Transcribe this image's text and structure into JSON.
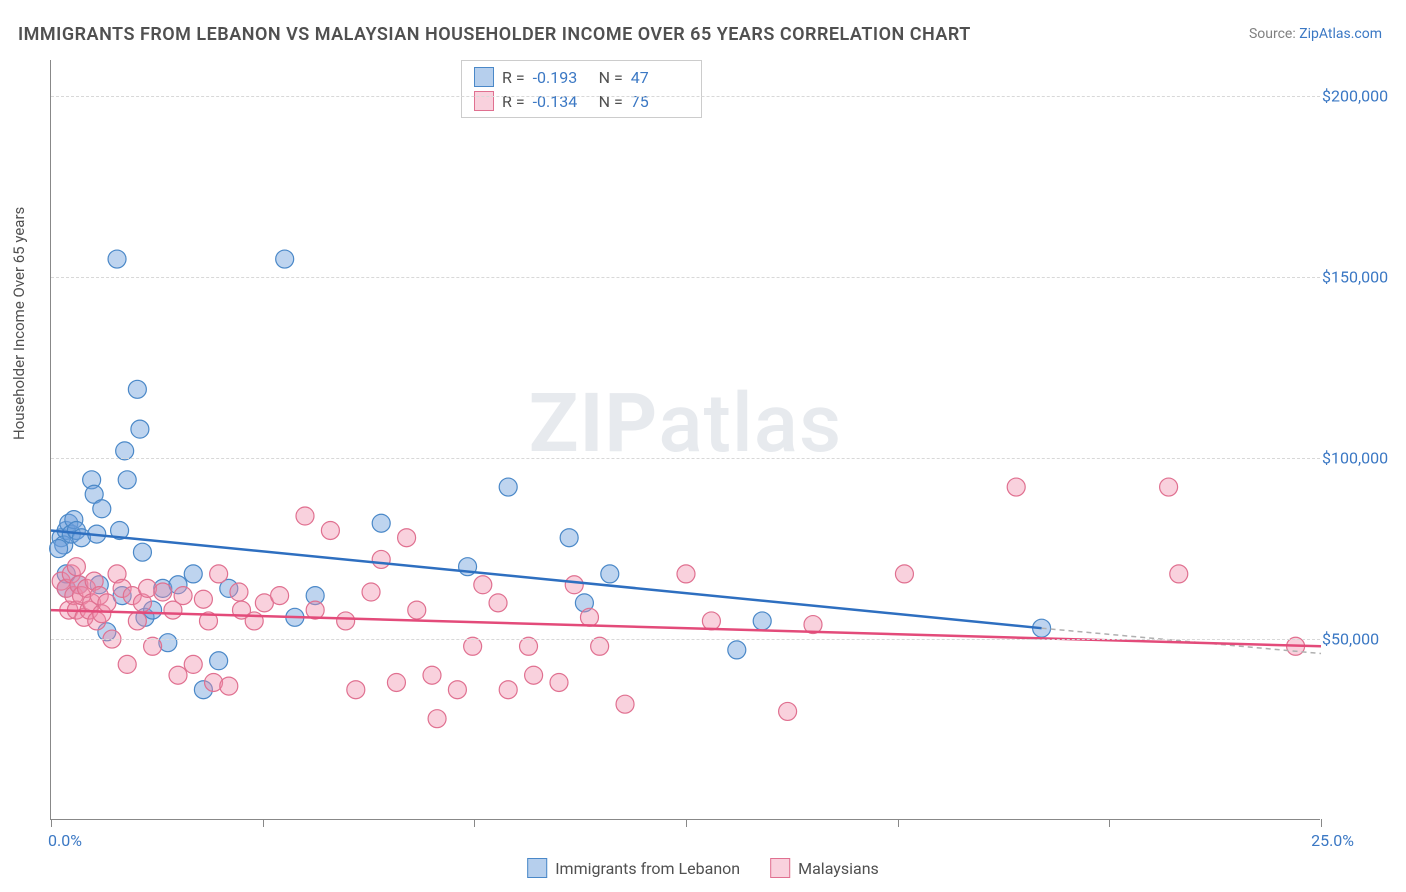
{
  "title": "IMMIGRANTS FROM LEBANON VS MALAYSIAN HOUSEHOLDER INCOME OVER 65 YEARS CORRELATION CHART",
  "source_label": "Source:",
  "source_name": "ZipAtlas.com",
  "ylabel": "Householder Income Over 65 years",
  "watermark_a": "ZIP",
  "watermark_b": "atlas",
  "chart": {
    "type": "scatter",
    "xlim": [
      0,
      25
    ],
    "ylim": [
      0,
      210000
    ],
    "x_tick_label_min": "0.0%",
    "x_tick_label_max": "25.0%",
    "x_ticks": [
      0,
      4.17,
      8.33,
      12.5,
      16.67,
      20.83,
      25
    ],
    "y_gridlines": [
      50000,
      100000,
      150000,
      200000
    ],
    "y_tick_labels": [
      "$50,000",
      "$100,000",
      "$150,000",
      "$200,000"
    ],
    "grid_color": "#d8d8d8",
    "axis_color": "#888888",
    "background_color": "#ffffff",
    "marker_radius": 9,
    "marker_stroke_width": 1.2,
    "series": [
      {
        "name": "Immigrants from Lebanon",
        "color_fill": "rgba(110,160,220,0.45)",
        "color_stroke": "#4a88c8",
        "r_value": "-0.193",
        "n_value": "47",
        "trend": {
          "x1": 0,
          "y1": 80000,
          "x2": 19.5,
          "y2": 53000,
          "color": "#2e6fc0",
          "width": 2.5
        },
        "trend_ext": {
          "x1": 19.5,
          "y1": 53000,
          "x2": 25,
          "y2": 46000,
          "color": "#b0b0b0",
          "dash": "5,4",
          "width": 1.5
        },
        "points": [
          [
            0.2,
            78000
          ],
          [
            0.3,
            80000
          ],
          [
            0.25,
            76000
          ],
          [
            0.35,
            82000
          ],
          [
            0.15,
            75000
          ],
          [
            0.3,
            64000
          ],
          [
            0.4,
            79000
          ],
          [
            0.45,
            83000
          ],
          [
            0.5,
            80000
          ],
          [
            0.55,
            65000
          ],
          [
            0.6,
            78000
          ],
          [
            0.3,
            68000
          ],
          [
            0.8,
            94000
          ],
          [
            0.85,
            90000
          ],
          [
            0.9,
            79000
          ],
          [
            0.95,
            65000
          ],
          [
            1.0,
            86000
          ],
          [
            1.1,
            52000
          ],
          [
            1.3,
            155000
          ],
          [
            1.35,
            80000
          ],
          [
            1.4,
            62000
          ],
          [
            1.45,
            102000
          ],
          [
            1.5,
            94000
          ],
          [
            1.7,
            119000
          ],
          [
            1.75,
            108000
          ],
          [
            1.8,
            74000
          ],
          [
            1.85,
            56000
          ],
          [
            2.0,
            58000
          ],
          [
            2.2,
            64000
          ],
          [
            2.3,
            49000
          ],
          [
            2.5,
            65000
          ],
          [
            2.8,
            68000
          ],
          [
            3.0,
            36000
          ],
          [
            3.3,
            44000
          ],
          [
            3.5,
            64000
          ],
          [
            4.6,
            155000
          ],
          [
            4.8,
            56000
          ],
          [
            5.2,
            62000
          ],
          [
            6.5,
            82000
          ],
          [
            8.2,
            70000
          ],
          [
            9.0,
            92000
          ],
          [
            10.2,
            78000
          ],
          [
            10.5,
            60000
          ],
          [
            11.0,
            68000
          ],
          [
            13.5,
            47000
          ],
          [
            14.0,
            55000
          ],
          [
            19.5,
            53000
          ]
        ]
      },
      {
        "name": "Malaysians",
        "color_fill": "rgba(240,140,170,0.40)",
        "color_stroke": "#e07090",
        "r_value": "-0.134",
        "n_value": "75",
        "trend": {
          "x1": 0,
          "y1": 58000,
          "x2": 25,
          "y2": 48000,
          "color": "#e34b7a",
          "width": 2.5
        },
        "points": [
          [
            0.2,
            66000
          ],
          [
            0.3,
            64000
          ],
          [
            0.35,
            58000
          ],
          [
            0.4,
            68000
          ],
          [
            0.45,
            62000
          ],
          [
            0.5,
            70000
          ],
          [
            0.5,
            58000
          ],
          [
            0.55,
            65000
          ],
          [
            0.6,
            62000
          ],
          [
            0.65,
            56000
          ],
          [
            0.7,
            64000
          ],
          [
            0.75,
            58000
          ],
          [
            0.8,
            60000
          ],
          [
            0.85,
            66000
          ],
          [
            0.9,
            55000
          ],
          [
            0.95,
            62000
          ],
          [
            1.0,
            57000
          ],
          [
            1.1,
            60000
          ],
          [
            1.2,
            50000
          ],
          [
            1.3,
            68000
          ],
          [
            1.4,
            64000
          ],
          [
            1.5,
            43000
          ],
          [
            1.6,
            62000
          ],
          [
            1.7,
            55000
          ],
          [
            1.8,
            60000
          ],
          [
            1.9,
            64000
          ],
          [
            2.0,
            48000
          ],
          [
            2.2,
            63000
          ],
          [
            2.4,
            58000
          ],
          [
            2.5,
            40000
          ],
          [
            2.6,
            62000
          ],
          [
            2.8,
            43000
          ],
          [
            3.0,
            61000
          ],
          [
            3.1,
            55000
          ],
          [
            3.2,
            38000
          ],
          [
            3.3,
            68000
          ],
          [
            3.5,
            37000
          ],
          [
            3.7,
            63000
          ],
          [
            3.75,
            58000
          ],
          [
            4.0,
            55000
          ],
          [
            4.2,
            60000
          ],
          [
            4.5,
            62000
          ],
          [
            5.0,
            84000
          ],
          [
            5.2,
            58000
          ],
          [
            5.5,
            80000
          ],
          [
            5.8,
            55000
          ],
          [
            6.0,
            36000
          ],
          [
            6.3,
            63000
          ],
          [
            6.5,
            72000
          ],
          [
            6.8,
            38000
          ],
          [
            7.0,
            78000
          ],
          [
            7.2,
            58000
          ],
          [
            7.5,
            40000
          ],
          [
            7.6,
            28000
          ],
          [
            8.0,
            36000
          ],
          [
            8.3,
            48000
          ],
          [
            8.5,
            65000
          ],
          [
            8.8,
            60000
          ],
          [
            9.0,
            36000
          ],
          [
            9.4,
            48000
          ],
          [
            9.5,
            40000
          ],
          [
            10.0,
            38000
          ],
          [
            10.3,
            65000
          ],
          [
            10.6,
            56000
          ],
          [
            10.8,
            48000
          ],
          [
            11.3,
            32000
          ],
          [
            12.5,
            68000
          ],
          [
            13.0,
            55000
          ],
          [
            14.5,
            30000
          ],
          [
            15.0,
            54000
          ],
          [
            16.8,
            68000
          ],
          [
            19.0,
            92000
          ],
          [
            22.0,
            92000
          ],
          [
            22.2,
            68000
          ],
          [
            24.5,
            48000
          ]
        ]
      }
    ]
  },
  "legend_bottom": {
    "item1": "Immigrants from Lebanon",
    "item2": "Malaysians"
  },
  "stats_legend": {
    "r_label": "R =",
    "n_label": "N ="
  }
}
